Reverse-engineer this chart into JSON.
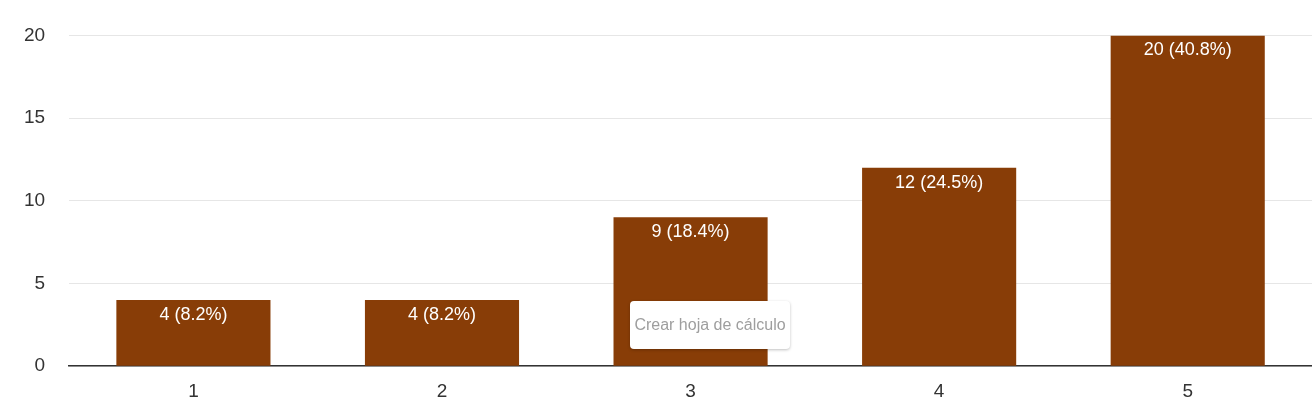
{
  "chart_data": {
    "type": "bar",
    "categories": [
      "1",
      "2",
      "3",
      "4",
      "5"
    ],
    "values": [
      4,
      4,
      9,
      12,
      20
    ],
    "value_labels": [
      "4 (8.2%)",
      "4 (8.2%)",
      "9 (18.4%)",
      "12 (24.5%)",
      "20 (40.8%)"
    ],
    "color": "#883d07",
    "ylim": [
      0,
      20
    ],
    "yticks": [
      0,
      5,
      10,
      15,
      20
    ],
    "grid": "y",
    "legend": false,
    "annotations": [
      "Crear hoja de cálculo"
    ]
  }
}
